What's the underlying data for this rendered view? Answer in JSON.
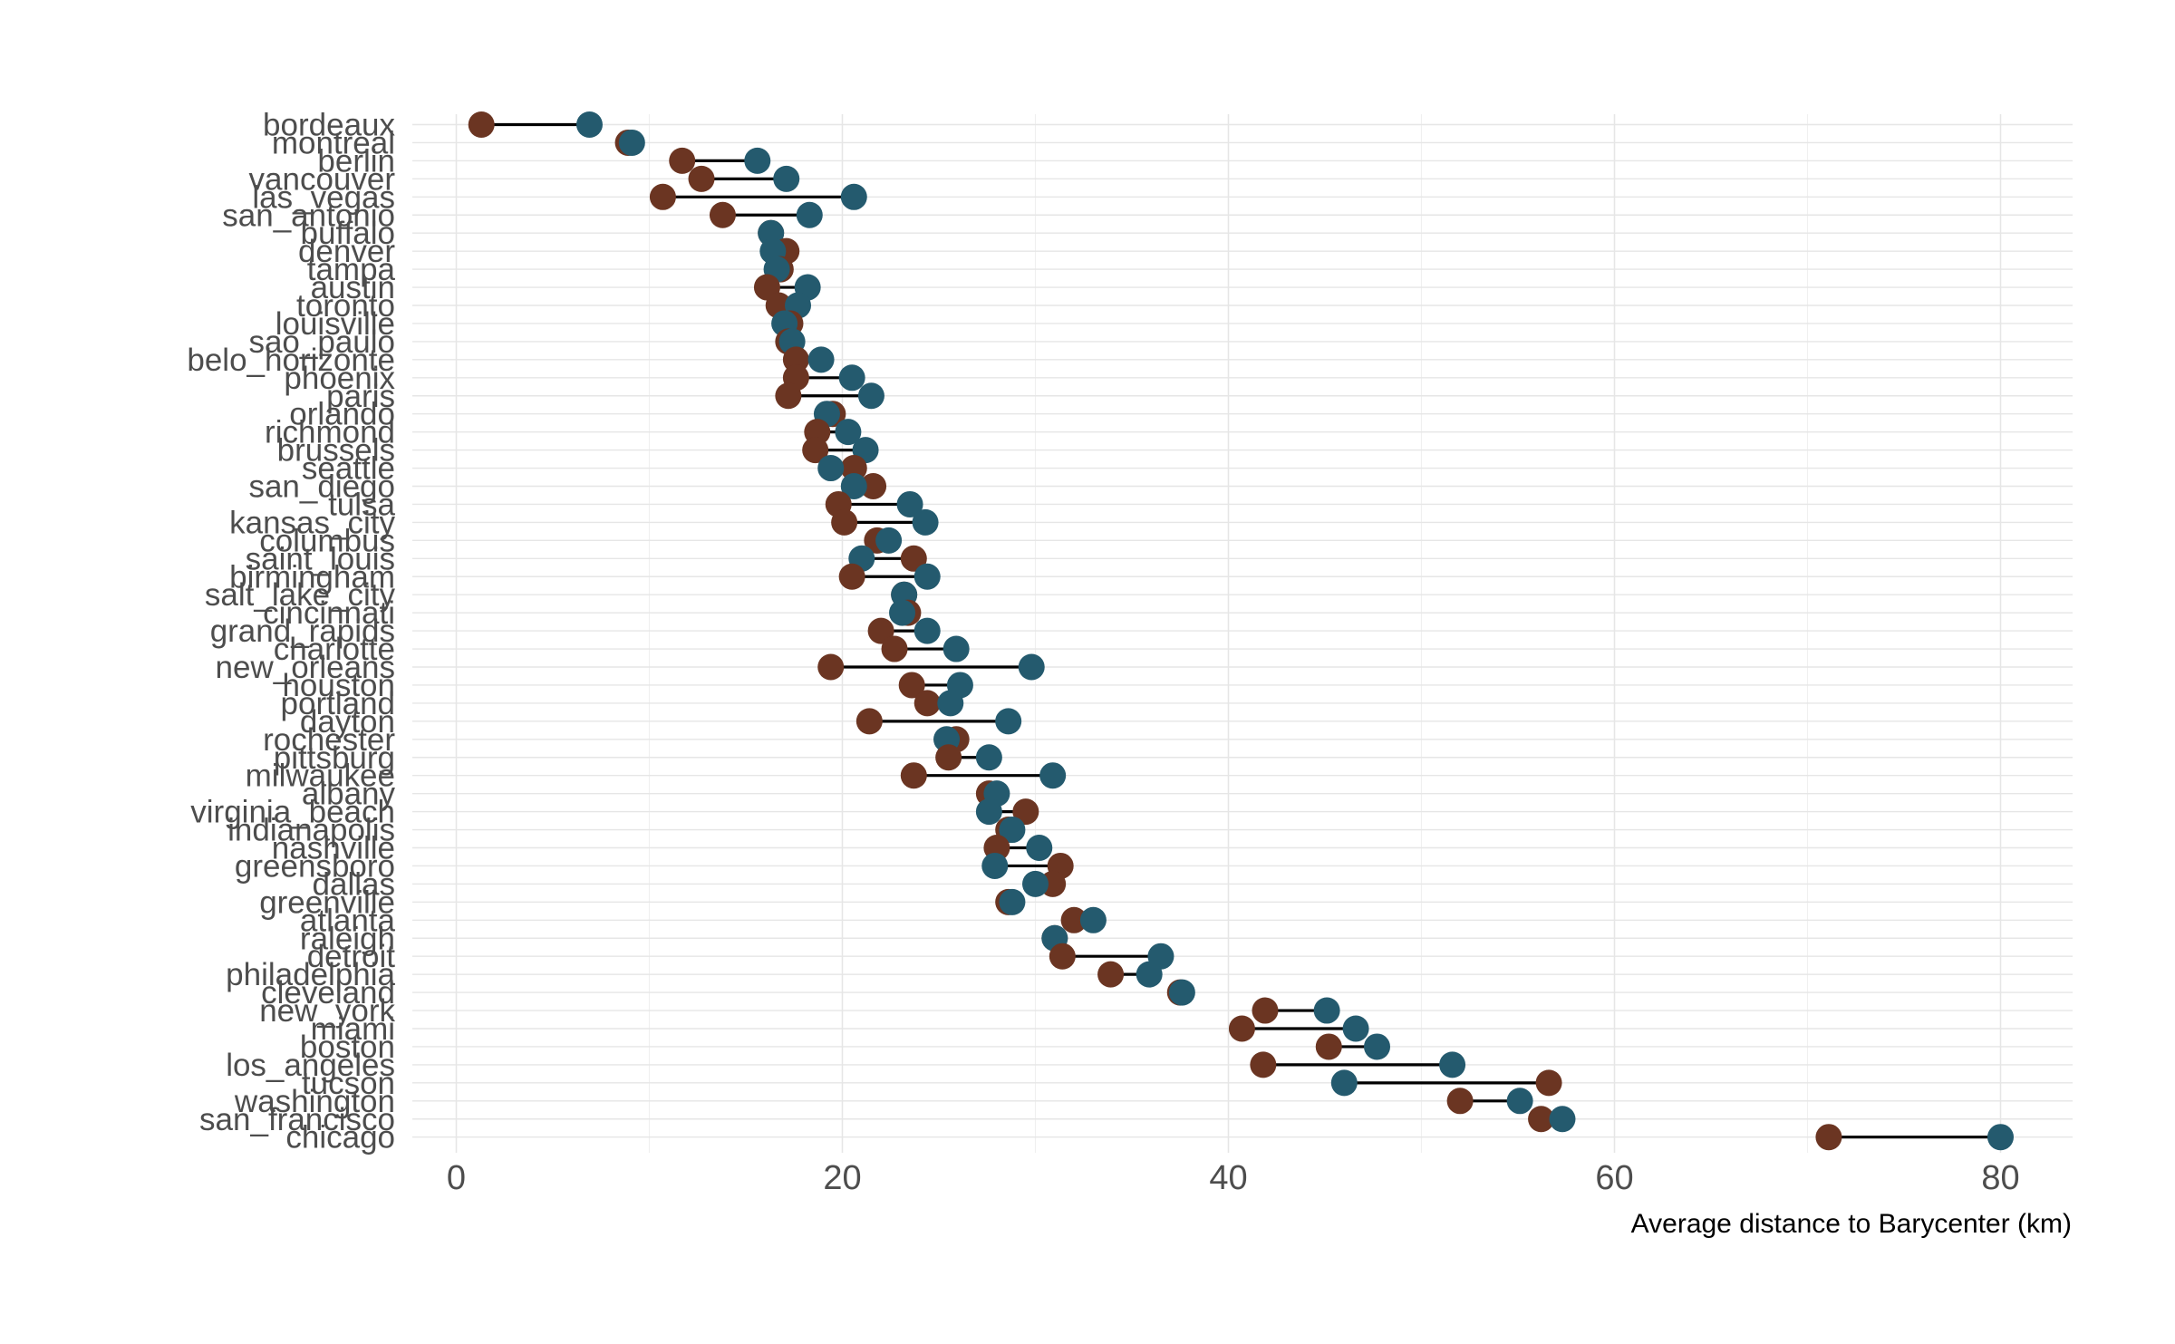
{
  "chart_data": {
    "type": "dumbbell",
    "title": "",
    "xlabel": "Average distance to Barycenter (km)",
    "ylabel": "",
    "xlim": [
      -3,
      84
    ],
    "xticks": [
      0,
      20,
      40,
      60,
      80
    ],
    "grid": true,
    "legend": "none",
    "colors": {
      "series_a": "#6b3522",
      "series_b": "#245a6e",
      "connector": "#000000",
      "grid": "#e6e6e6"
    },
    "categories": [
      "bordeaux",
      "montreal",
      "berlin",
      "vancouver",
      "las_vegas",
      "san_antonio",
      "buffalo",
      "denver",
      "tampa",
      "austin",
      "toronto",
      "louisville",
      "sao_paulo",
      "belo_horizonte",
      "phoenix",
      "paris",
      "orlando",
      "richmond",
      "brussels",
      "seattle",
      "san_diego",
      "tulsa",
      "kansas_city",
      "columbus",
      "saint_louis",
      "birmingham",
      "salt_lake_city",
      "cincinnati",
      "grand_rapids",
      "charlotte",
      "new_orleans",
      "houston",
      "portland",
      "dayton",
      "rochester",
      "pittsburg",
      "milwaukee",
      "albany",
      "virginia_beach",
      "indianapolis",
      "nashville",
      "greensboro",
      "dallas",
      "greenville",
      "atlanta",
      "raleigh",
      "detroit",
      "philadelphia",
      "cleveland",
      "new_york",
      "miami",
      "boston",
      "los_angeles",
      "tucson",
      "washington",
      "san_francisco",
      "chicago"
    ],
    "series": [
      {
        "values": [
          1.3,
          8.9,
          11.7,
          12.7,
          10.7,
          13.8,
          16.3,
          17.1,
          16.8,
          16.1,
          16.7,
          17.3,
          17.2,
          17.6,
          17.6,
          17.2,
          19.5,
          18.7,
          18.6,
          20.6,
          21.6,
          19.8,
          20.1,
          21.8,
          23.7,
          20.5,
          23.2,
          23.4,
          22.0,
          22.7,
          19.4,
          23.6,
          24.4,
          21.4,
          25.9,
          25.5,
          23.7,
          27.6,
          29.5,
          28.6,
          28.0,
          31.3,
          30.9,
          28.6,
          32.0,
          31.0,
          31.4,
          33.9,
          37.5,
          41.9,
          40.7,
          45.2,
          41.8,
          56.6,
          52.0,
          56.2,
          71.1
        ]
      },
      {
        "values": [
          6.9,
          9.1,
          15.6,
          17.1,
          20.6,
          18.3,
          16.3,
          16.4,
          16.6,
          18.2,
          17.7,
          17.0,
          17.4,
          18.9,
          20.5,
          21.5,
          19.2,
          20.3,
          21.2,
          19.4,
          20.6,
          23.5,
          24.3,
          22.4,
          21.0,
          24.4,
          23.2,
          23.1,
          24.4,
          25.9,
          29.8,
          26.1,
          25.6,
          28.6,
          25.4,
          27.6,
          30.9,
          28.0,
          27.6,
          28.8,
          30.2,
          27.9,
          30.0,
          28.8,
          33.0,
          31.0,
          36.5,
          35.9,
          37.6,
          45.1,
          46.6,
          47.7,
          51.6,
          46.0,
          55.1,
          57.3,
          80.0
        ]
      }
    ]
  }
}
